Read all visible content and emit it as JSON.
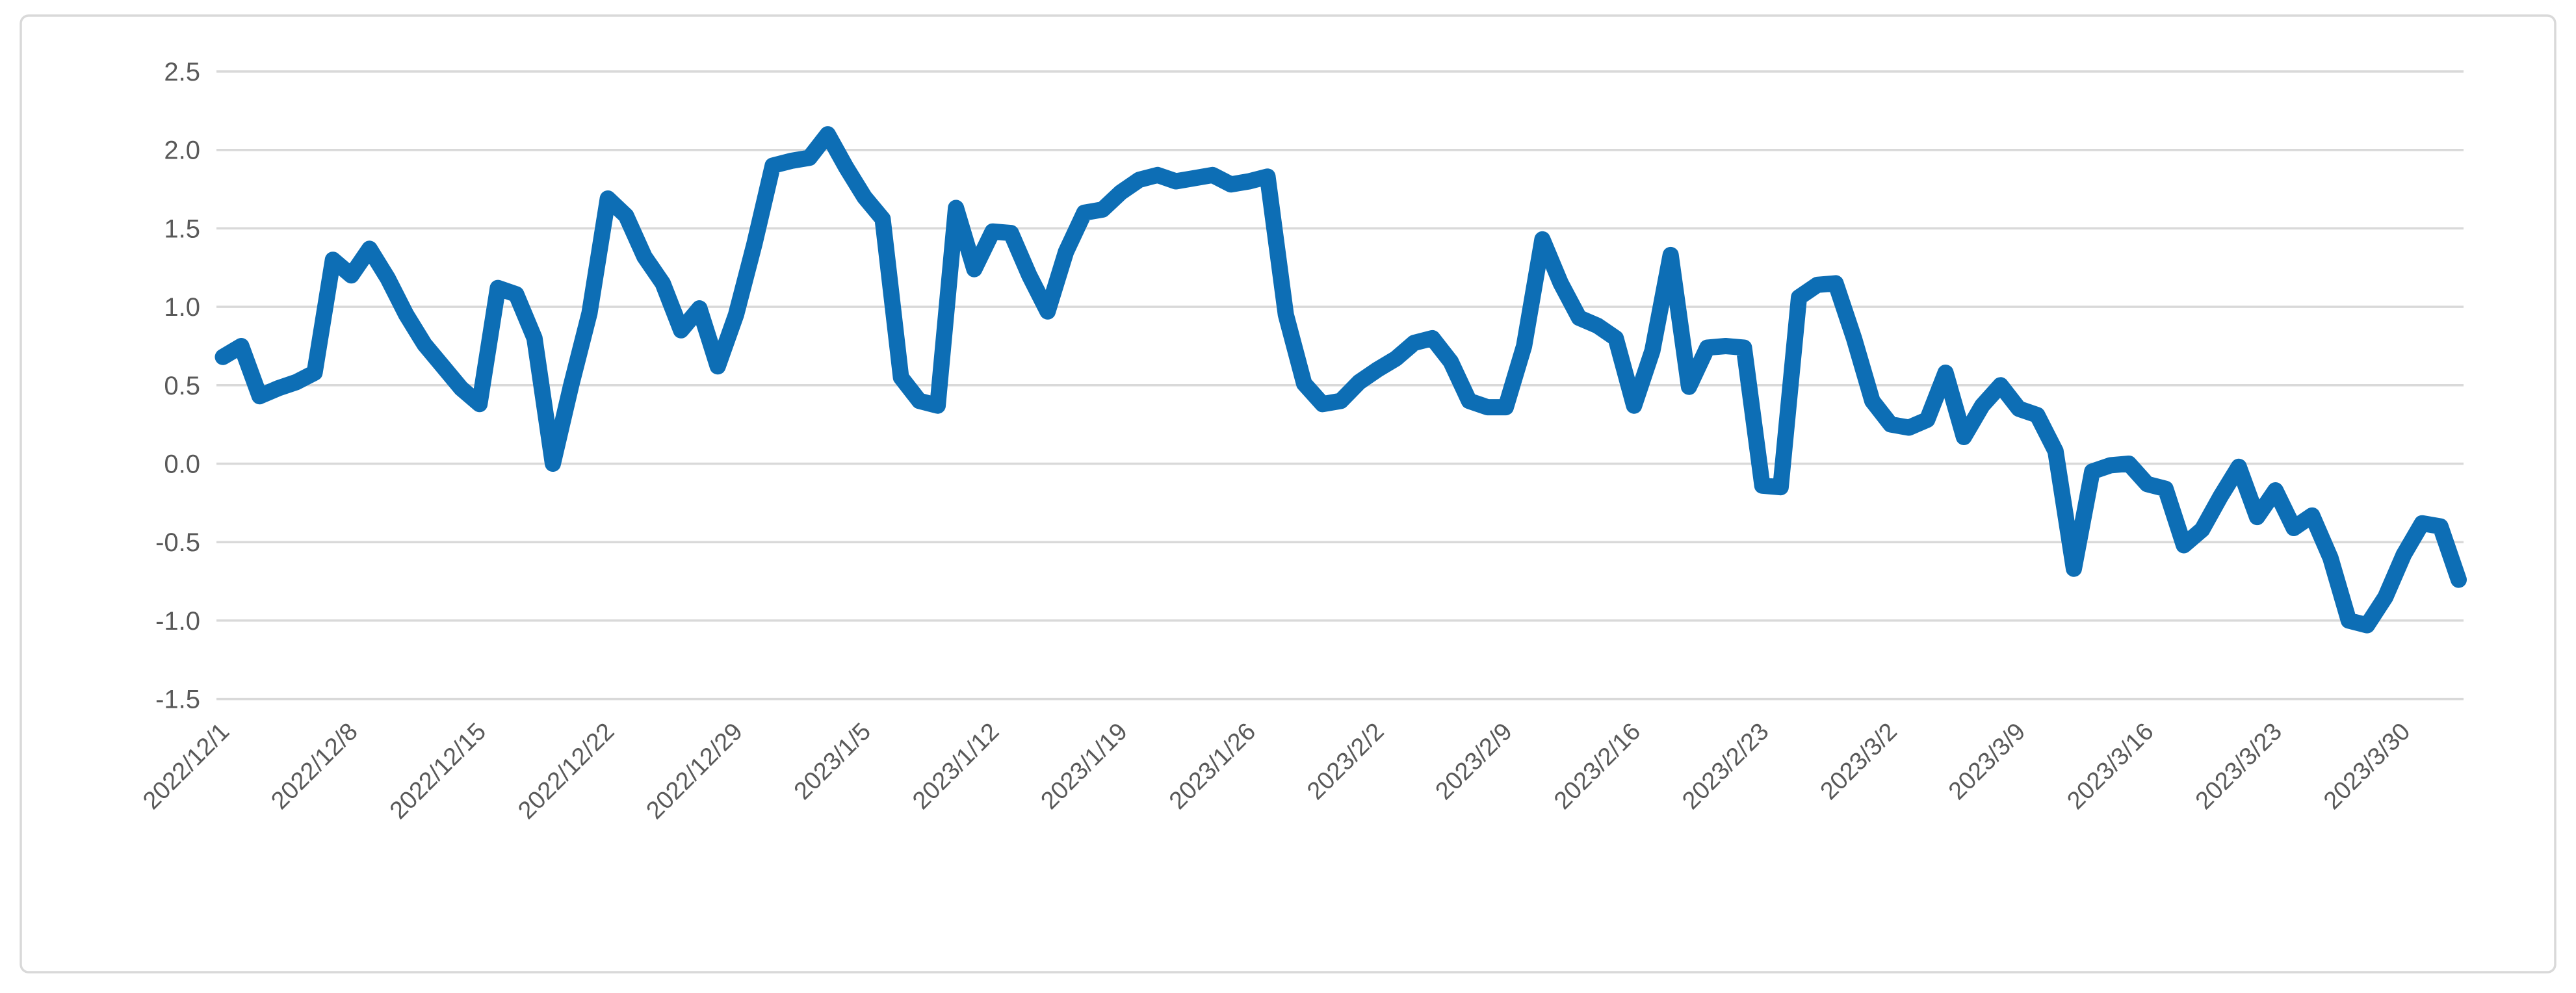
{
  "chart_data": {
    "type": "line",
    "title": "",
    "xlabel": "",
    "ylabel": "",
    "legend": "none",
    "grid": "horizontal",
    "start_date": "2022/12/1",
    "end_date": "2023/4/2",
    "tick_interval_days": 7,
    "x_tick_labels": [
      "2022/12/1",
      "2022/12/8",
      "2022/12/15",
      "2022/12/22",
      "2022/12/29",
      "2023/1/5",
      "2023/1/12",
      "2023/1/19",
      "2023/1/26",
      "2023/2/2",
      "2023/2/9",
      "2023/2/16",
      "2023/2/23",
      "2023/3/2",
      "2023/3/9",
      "2023/3/16",
      "2023/3/23",
      "2023/3/30"
    ],
    "y_tick_labels": [
      "2.5",
      "2.0",
      "1.5",
      "1.0",
      "0.5",
      "0.0",
      "-0.5",
      "-1.0",
      "-1.5"
    ],
    "ylim": [
      -1.5,
      2.5
    ],
    "y_tick_step": 0.5,
    "values": [
      0.68,
      0.75,
      0.43,
      0.48,
      0.52,
      0.58,
      1.3,
      1.2,
      1.37,
      1.18,
      0.95,
      0.76,
      0.62,
      0.48,
      0.38,
      1.12,
      1.08,
      0.8,
      0.0,
      0.5,
      0.96,
      1.69,
      1.58,
      1.32,
      1.15,
      0.85,
      0.99,
      0.62,
      0.95,
      1.4,
      1.9,
      1.93,
      1.95,
      2.1,
      1.89,
      1.7,
      1.56,
      0.55,
      0.4,
      0.37,
      1.63,
      1.24,
      1.48,
      1.47,
      1.2,
      0.97,
      1.35,
      1.6,
      1.62,
      1.73,
      1.81,
      1.84,
      1.8,
      1.82,
      1.84,
      1.78,
      1.8,
      1.83,
      0.95,
      0.51,
      0.38,
      0.4,
      0.52,
      0.6,
      0.67,
      0.77,
      0.8,
      0.65,
      0.4,
      0.36,
      0.36,
      0.75,
      1.43,
      1.15,
      0.93,
      0.88,
      0.8,
      0.37,
      0.72,
      1.33,
      0.49,
      0.74,
      0.75,
      0.74,
      -0.14,
      -0.15,
      1.06,
      1.14,
      1.15,
      0.8,
      0.4,
      0.25,
      0.23,
      0.28,
      0.58,
      0.17,
      0.37,
      0.5,
      0.35,
      0.31,
      0.08,
      -0.67,
      -0.05,
      -0.01,
      0.0,
      -0.13,
      -0.16,
      -0.52,
      -0.42,
      -0.21,
      -0.02,
      -0.34,
      -0.17,
      -0.41,
      -0.33,
      -0.6,
      -1.0,
      -1.03,
      -0.85,
      -0.58,
      -0.38,
      -0.4,
      -0.74
    ],
    "colors": {
      "line": "#0D6EB5",
      "gridline": "#D9D9D9",
      "labels": "#595959",
      "background": "#FFFFFF",
      "border": "#D9D9D9"
    }
  }
}
